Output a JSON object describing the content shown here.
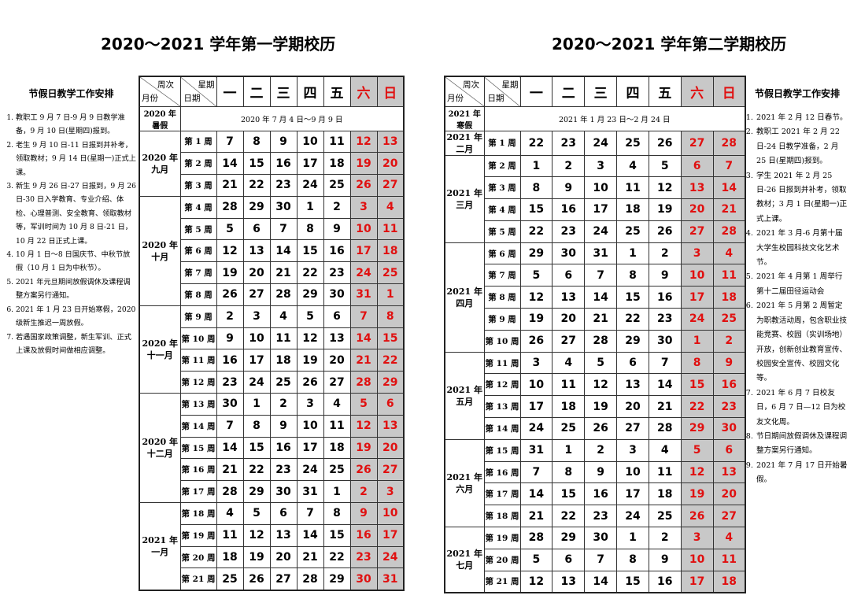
{
  "sem1": {
    "title": "2020～2021 学年第一学期校历",
    "header": {
      "week_label": "周次",
      "weekday_label": "星期",
      "month_label": "月份",
      "date_label": "日期"
    },
    "days": [
      "一",
      "二",
      "三",
      "四",
      "五",
      "六",
      "日"
    ],
    "break_label": "2020 年暑假",
    "break_range": "2020 年 7 月 4 日～9 月 9 日",
    "months": [
      {
        "label": "2020 年\n九月",
        "rows": 3
      },
      {
        "label": "2020 年\n十月",
        "rows": 5
      },
      {
        "label": "2020 年\n十一月",
        "rows": 4
      },
      {
        "label": "2020 年\n十二月",
        "rows": 5
      },
      {
        "label": "2021 年\n一月",
        "rows": 4
      }
    ],
    "weeks": [
      {
        "week": "第 1 周",
        "days": [
          "7",
          "8",
          "9",
          "10",
          "11",
          "12",
          "13"
        ]
      },
      {
        "week": "第 2 周",
        "days": [
          "14",
          "15",
          "16",
          "17",
          "18",
          "19",
          "20"
        ]
      },
      {
        "week": "第 3 周",
        "days": [
          "21",
          "22",
          "23",
          "24",
          "25",
          "26",
          "27"
        ]
      },
      {
        "week": "第 4 周",
        "days": [
          "28",
          "29",
          "30",
          "1",
          "2",
          "3",
          "4"
        ]
      },
      {
        "week": "第 5 周",
        "days": [
          "5",
          "6",
          "7",
          "8",
          "9",
          "10",
          "11"
        ]
      },
      {
        "week": "第 6 周",
        "days": [
          "12",
          "13",
          "14",
          "15",
          "16",
          "17",
          "18"
        ]
      },
      {
        "week": "第 7 周",
        "days": [
          "19",
          "20",
          "21",
          "22",
          "23",
          "24",
          "25"
        ]
      },
      {
        "week": "第 8 周",
        "days": [
          "26",
          "27",
          "28",
          "29",
          "30",
          "31",
          "1"
        ]
      },
      {
        "week": "第 9 周",
        "days": [
          "2",
          "3",
          "4",
          "5",
          "6",
          "7",
          "8"
        ]
      },
      {
        "week": "第 10 周",
        "days": [
          "9",
          "10",
          "11",
          "12",
          "13",
          "14",
          "15"
        ]
      },
      {
        "week": "第 11 周",
        "days": [
          "16",
          "17",
          "18",
          "19",
          "20",
          "21",
          "22"
        ]
      },
      {
        "week": "第 12 周",
        "days": [
          "23",
          "24",
          "25",
          "26",
          "27",
          "28",
          "29"
        ]
      },
      {
        "week": "第 13 周",
        "days": [
          "30",
          "1",
          "2",
          "3",
          "4",
          "5",
          "6"
        ]
      },
      {
        "week": "第 14 周",
        "days": [
          "7",
          "8",
          "9",
          "10",
          "11",
          "12",
          "13"
        ]
      },
      {
        "week": "第 15 周",
        "days": [
          "14",
          "15",
          "16",
          "17",
          "18",
          "19",
          "20"
        ]
      },
      {
        "week": "第 16 周",
        "days": [
          "21",
          "22",
          "23",
          "24",
          "25",
          "26",
          "27"
        ]
      },
      {
        "week": "第 17 周",
        "days": [
          "28",
          "29",
          "30",
          "31",
          "1",
          "2",
          "3"
        ]
      },
      {
        "week": "第 18 周",
        "days": [
          "4",
          "5",
          "6",
          "7",
          "8",
          "9",
          "10"
        ]
      },
      {
        "week": "第 19 周",
        "days": [
          "11",
          "12",
          "13",
          "14",
          "15",
          "16",
          "17"
        ]
      },
      {
        "week": "第 20 周",
        "days": [
          "18",
          "19",
          "20",
          "21",
          "22",
          "23",
          "24"
        ]
      },
      {
        "week": "第 21 周",
        "days": [
          "25",
          "26",
          "27",
          "28",
          "29",
          "30",
          "31"
        ]
      }
    ],
    "notes_title": "节假日教学工作安排",
    "notes": [
      "教职工 9 月 7 日-9 月 9 日教学准备，9 月 10 日(星期四)报到。",
      "老生 9 月 10 日-11 日报到并补考，领取教材；9 月 14 日(星期一)正式上课。",
      "新生 9 月 26 日-27 日报到，9 月 26 日-30 日入学教育、专业介绍、体检、心理普测、安全教育、领取教材等，军训时间为 10 月 8 日-21 日，10 月 22 日正式上课。",
      "10 月 1 日～8 日国庆节、中秋节放假（10 月 1 日为中秋节）。",
      "2021 年元旦期间放假调休及课程调整方案另行通知。",
      "2021 年 1 月 23 日开始寒假，2020 级新生推迟一周放假。",
      "若遇国家政策调整，新生军训、正式上课及放假时间做相应调整。"
    ]
  },
  "sem2": {
    "title": "2020～2021 学年第二学期校历",
    "header": {
      "week_label": "周次",
      "weekday_label": "星期",
      "month_label": "月份",
      "date_label": "日期"
    },
    "days": [
      "一",
      "二",
      "三",
      "四",
      "五",
      "六",
      "日"
    ],
    "break_label": "2021 年寒假",
    "break_range": "2021 年 1 月 23 日～2 月 24 日",
    "months": [
      {
        "label": "2021 年\n二月",
        "rows": 1
      },
      {
        "label": "2021 年\n三月",
        "rows": 4
      },
      {
        "label": "2021 年\n四月",
        "rows": 5
      },
      {
        "label": "2021 年\n五月",
        "rows": 4
      },
      {
        "label": "2021 年\n六月",
        "rows": 4
      },
      {
        "label": "2021 年\n七月",
        "rows": 3
      }
    ],
    "weeks": [
      {
        "week": "第 1 周",
        "days": [
          "22",
          "23",
          "24",
          "25",
          "26",
          "27",
          "28"
        ]
      },
      {
        "week": "第 2 周",
        "days": [
          "1",
          "2",
          "3",
          "4",
          "5",
          "6",
          "7"
        ]
      },
      {
        "week": "第 3 周",
        "days": [
          "8",
          "9",
          "10",
          "11",
          "12",
          "13",
          "14"
        ]
      },
      {
        "week": "第 4 周",
        "days": [
          "15",
          "16",
          "17",
          "18",
          "19",
          "20",
          "21"
        ]
      },
      {
        "week": "第 5 周",
        "days": [
          "22",
          "23",
          "24",
          "25",
          "26",
          "27",
          "28"
        ]
      },
      {
        "week": "第 6 周",
        "days": [
          "29",
          "30",
          "31",
          "1",
          "2",
          "3",
          "4"
        ]
      },
      {
        "week": "第 7 周",
        "days": [
          "5",
          "6",
          "7",
          "8",
          "9",
          "10",
          "11"
        ]
      },
      {
        "week": "第 8 周",
        "days": [
          "12",
          "13",
          "14",
          "15",
          "16",
          "17",
          "18"
        ]
      },
      {
        "week": "第 9 周",
        "days": [
          "19",
          "20",
          "21",
          "22",
          "23",
          "24",
          "25"
        ]
      },
      {
        "week": "第 10 周",
        "days": [
          "26",
          "27",
          "28",
          "29",
          "30",
          "1",
          "2"
        ]
      },
      {
        "week": "第 11 周",
        "days": [
          "3",
          "4",
          "5",
          "6",
          "7",
          "8",
          "9"
        ]
      },
      {
        "week": "第 12 周",
        "days": [
          "10",
          "11",
          "12",
          "13",
          "14",
          "15",
          "16"
        ]
      },
      {
        "week": "第 13 周",
        "days": [
          "17",
          "18",
          "19",
          "20",
          "21",
          "22",
          "23"
        ]
      },
      {
        "week": "第 14 周",
        "days": [
          "24",
          "25",
          "26",
          "27",
          "28",
          "29",
          "30"
        ]
      },
      {
        "week": "第 15 周",
        "days": [
          "31",
          "1",
          "2",
          "3",
          "4",
          "5",
          "6"
        ]
      },
      {
        "week": "第 16 周",
        "days": [
          "7",
          "8",
          "9",
          "10",
          "11",
          "12",
          "13"
        ]
      },
      {
        "week": "第 17 周",
        "days": [
          "14",
          "15",
          "16",
          "17",
          "18",
          "19",
          "20"
        ]
      },
      {
        "week": "第 18 周",
        "days": [
          "21",
          "22",
          "23",
          "24",
          "25",
          "26",
          "27"
        ]
      },
      {
        "week": "第 19 周",
        "days": [
          "28",
          "29",
          "30",
          "1",
          "2",
          "3",
          "4"
        ]
      },
      {
        "week": "第 20 周",
        "days": [
          "5",
          "6",
          "7",
          "8",
          "9",
          "10",
          "11"
        ]
      },
      {
        "week": "第 21 周",
        "days": [
          "12",
          "13",
          "14",
          "15",
          "16",
          "17",
          "18"
        ]
      }
    ],
    "notes_title": "节假日教学工作安排",
    "notes": [
      "2021 年 2 月 12 日春节。",
      "教职工 2021 年 2 月 22 日-24 日教学准备，2 月 25 日(星期四)报到。",
      "学生 2021 年 2 月 25 日-26 日报到并补考，领取教材；3 月 1 日(星期一)正式上课。",
      "2021 年 3 月-6 月第十届大学生校园科技文化艺术节。",
      "2021 年 4 月第 1 周举行第十二届田径运动会",
      "2021 年 5 月第 2 周暂定为职教活动周，包含职业技能竞赛、校园（实训场地）开放，创新创业教育宣传、校园安全宣传、校园文化等。",
      "2021 年 6 月 7 日校友日，6 月 7 日—12 日为校友文化周。",
      "节日期间放假调休及课程调整方案另行通知。",
      "2021 年 7 月 17 日开始暑假。"
    ]
  }
}
